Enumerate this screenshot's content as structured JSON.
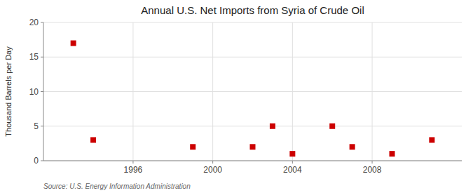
{
  "chart_data": {
    "type": "scatter",
    "title": "Annual U.S. Net Imports from Syria of Crude Oil",
    "y_label": "Thousand Barrels per Day",
    "annotations": [
      "Source: U.S. Energy Information Administration"
    ],
    "x": [
      1993,
      1994,
      1999,
      2002,
      2003,
      2004,
      2006,
      2007,
      2009,
      2011
    ],
    "values": [
      17,
      3,
      2,
      2,
      5,
      1,
      5,
      2,
      1,
      3
    ],
    "xlim": [
      1991.5,
      2012.5
    ],
    "ylim": [
      0,
      20
    ],
    "xticks": [
      1996,
      2000,
      2004,
      2008
    ],
    "yticks": [
      0,
      5,
      10,
      15,
      20
    ],
    "grid": true,
    "color": "#cc0000",
    "marker": "square"
  }
}
